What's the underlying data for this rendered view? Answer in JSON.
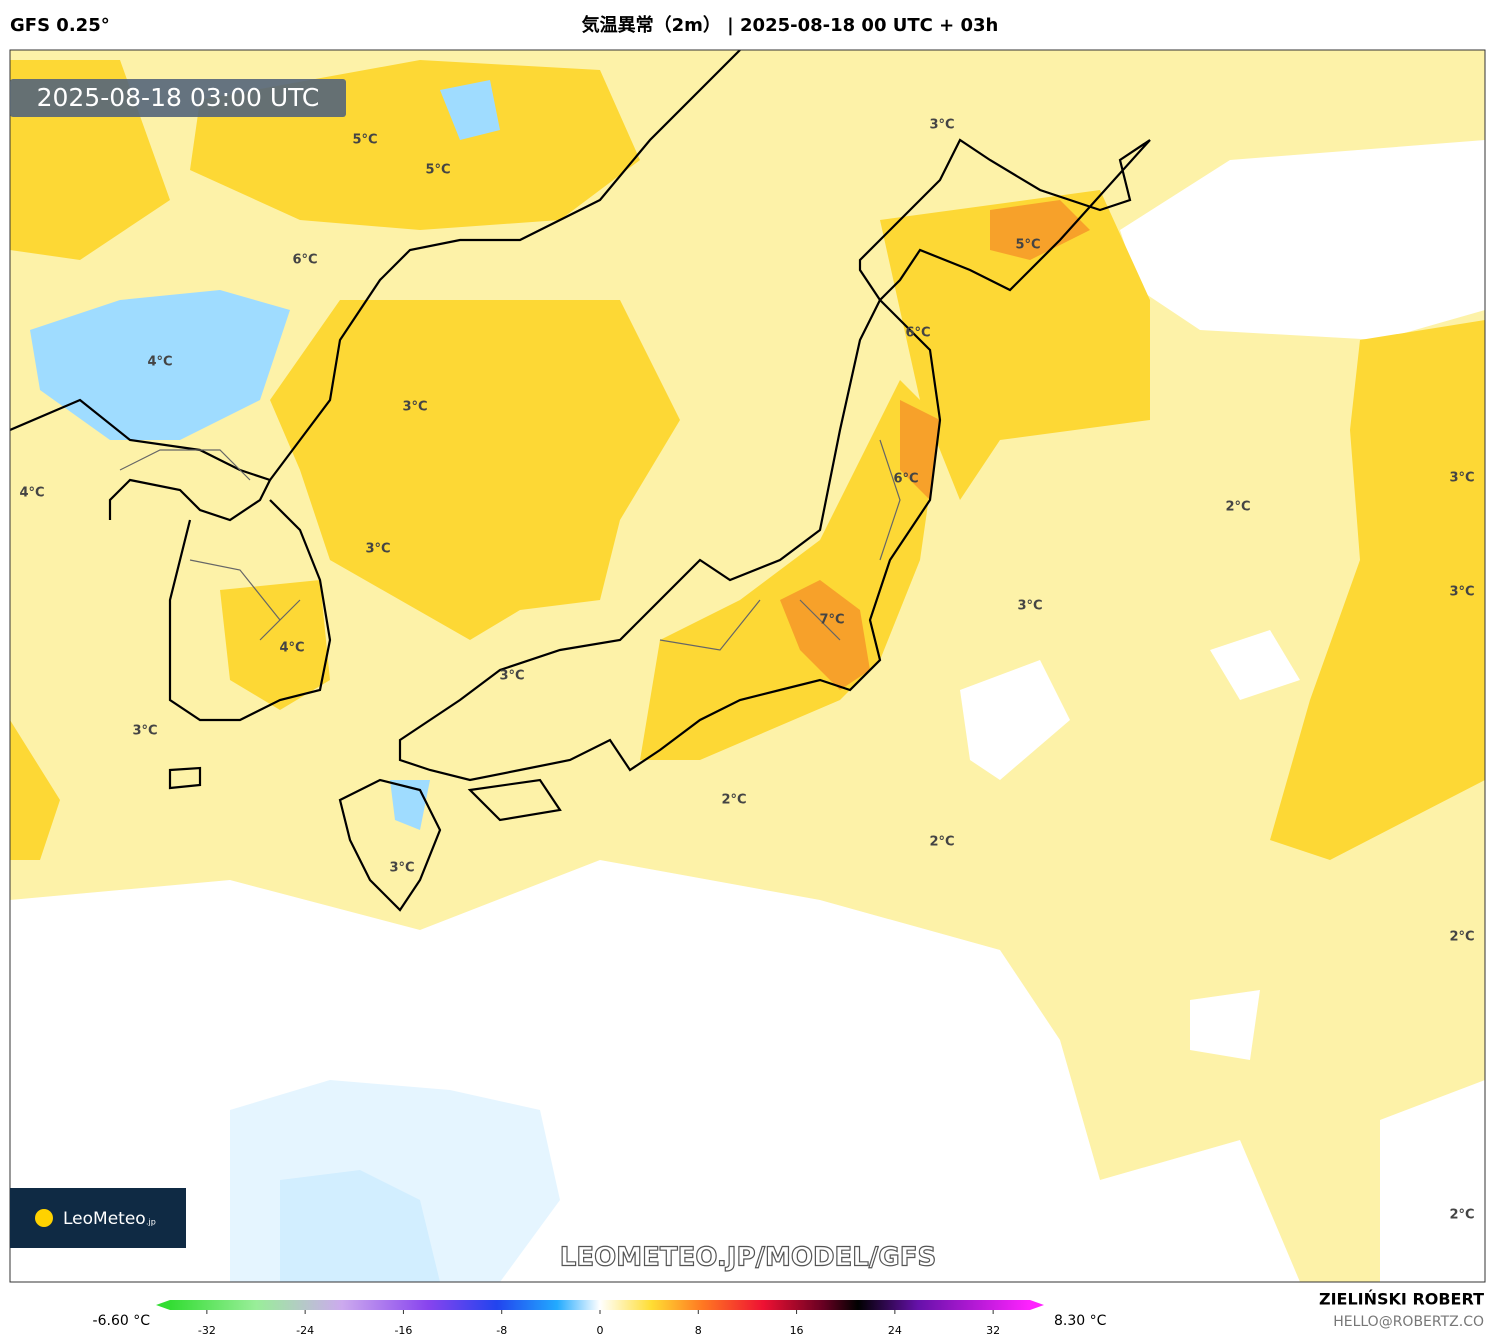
{
  "header": {
    "model": "GFS 0.25°",
    "title": "気温異常（2m） | 2025-08-18 00 UTC + 03h"
  },
  "timestamp": "2025-08-18 03:00 UTC",
  "contour_labels": [
    "5°C",
    "5°C",
    "3°C",
    "5°C",
    "6°C",
    "4°C",
    "6°C",
    "3°C",
    "4°C",
    "6°C",
    "2°C",
    "3°C",
    "3°C",
    "3°C",
    "3°C",
    "7°C",
    "4°C",
    "3°C",
    "3°C",
    "2°C",
    "2°C",
    "3°C",
    "2°C",
    "2°C"
  ],
  "logo": {
    "name": "LeoMeteo",
    "suffix": ".jp"
  },
  "watermark": "LEOMETEO.JP/MODEL/GFS",
  "colorbar": {
    "min_label": "-6.60 °C",
    "max_label": "8.30 °C",
    "range": [
      -35,
      35
    ],
    "ticks": [
      -32,
      -24,
      -16,
      -8,
      0,
      8,
      16,
      24,
      32
    ]
  },
  "credits": {
    "author": "ZIELIŃSKI ROBERT",
    "email": "HELLO@ROBERTZ.CO"
  }
}
